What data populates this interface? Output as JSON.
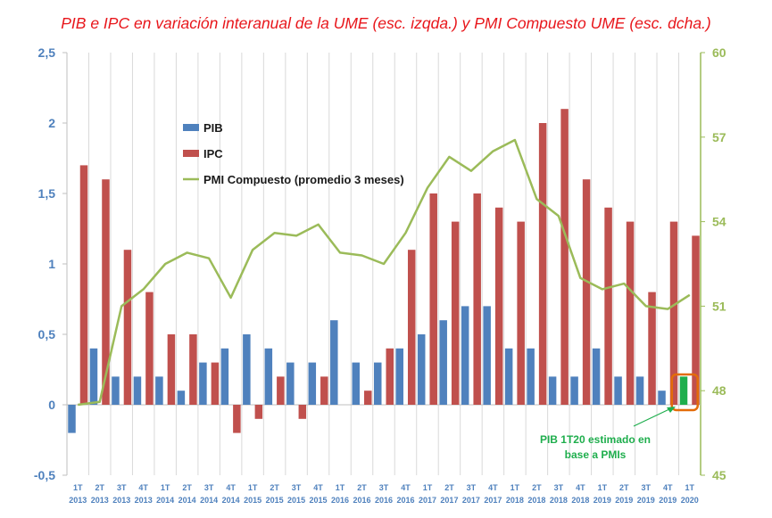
{
  "chart_data": {
    "type": "bar+line",
    "title": "PIB e IPC en variación interanual de la UME (esc. izqda.) y PMI Compuesto UME (esc. dcha.)",
    "categories": [
      [
        "1T",
        "2013"
      ],
      [
        "2T",
        "2013"
      ],
      [
        "3T",
        "2013"
      ],
      [
        "4T",
        "2013"
      ],
      [
        "1T",
        "2014"
      ],
      [
        "2T",
        "2014"
      ],
      [
        "3T",
        "2014"
      ],
      [
        "4T",
        "2014"
      ],
      [
        "1T",
        "2015"
      ],
      [
        "2T",
        "2015"
      ],
      [
        "3T",
        "2015"
      ],
      [
        "4T",
        "2015"
      ],
      [
        "1T",
        "2016"
      ],
      [
        "2T",
        "2016"
      ],
      [
        "3T",
        "2016"
      ],
      [
        "4T",
        "2016"
      ],
      [
        "1T",
        "2017"
      ],
      [
        "2T",
        "2017"
      ],
      [
        "3T",
        "2017"
      ],
      [
        "4T",
        "2017"
      ],
      [
        "1T",
        "2018"
      ],
      [
        "2T",
        "2018"
      ],
      [
        "3T",
        "2018"
      ],
      [
        "4T",
        "2018"
      ],
      [
        "1T",
        "2019"
      ],
      [
        "2T",
        "2019"
      ],
      [
        "3T",
        "2019"
      ],
      [
        "4T",
        "2019"
      ],
      [
        "1T",
        "2020"
      ]
    ],
    "series": [
      {
        "name": "PIB",
        "axis": "left",
        "type": "bar",
        "color": "#4f81bd",
        "values": [
          -0.2,
          0.4,
          0.2,
          0.2,
          0.2,
          0.1,
          0.3,
          0.4,
          0.5,
          0.4,
          0.3,
          0.3,
          0.6,
          0.3,
          0.3,
          0.4,
          0.5,
          0.6,
          0.7,
          0.7,
          0.4,
          0.4,
          0.2,
          0.2,
          0.4,
          0.2,
          0.2,
          0.1,
          0.2
        ]
      },
      {
        "name": "IPC",
        "axis": "left",
        "type": "bar",
        "color": "#c0504d",
        "values": [
          1.7,
          1.6,
          1.1,
          0.8,
          0.5,
          0.5,
          0.3,
          -0.2,
          -0.1,
          0.2,
          -0.1,
          0.2,
          0.0,
          0.1,
          0.4,
          1.1,
          1.5,
          1.3,
          1.5,
          1.4,
          1.3,
          2.0,
          2.1,
          1.6,
          1.4,
          1.3,
          0.8,
          1.3,
          1.2
        ]
      },
      {
        "name": "PMI Compuesto (promedio 3 meses)",
        "axis": "right",
        "type": "line",
        "color": "#9bbb59",
        "values": [
          47.5,
          47.6,
          51.0,
          51.6,
          52.5,
          52.9,
          52.7,
          51.3,
          53.0,
          53.6,
          53.5,
          53.9,
          52.9,
          52.8,
          52.5,
          53.6,
          55.2,
          56.3,
          55.8,
          56.5,
          56.9,
          54.8,
          54.2,
          52.0,
          51.6,
          51.8,
          51.0,
          50.9,
          51.4
        ]
      }
    ],
    "estimate_color": "#1fae4d",
    "left_axis": {
      "min": -0.5,
      "max": 2.5,
      "ticks": [
        "-0,5",
        "0",
        "0,5",
        "1",
        "1,5",
        "2",
        "2,5"
      ],
      "tick_values": [
        -0.5,
        0,
        0.5,
        1,
        1.5,
        2,
        2.5
      ]
    },
    "right_axis": {
      "min": 45,
      "max": 60,
      "ticks": [
        "45",
        "48",
        "51",
        "54",
        "57",
        "60"
      ],
      "tick_values": [
        45,
        48,
        51,
        54,
        57,
        60
      ]
    },
    "legend": [
      "PIB",
      "IPC",
      "PMI Compuesto (promedio 3 meses)"
    ],
    "legend_position": "top-left",
    "annotation": {
      "lines": [
        "PIB 1T20 estimado en",
        "base a PMIs"
      ],
      "color": "#1fae4d",
      "box_color": "#e36c09"
    },
    "grid": "vertical"
  }
}
